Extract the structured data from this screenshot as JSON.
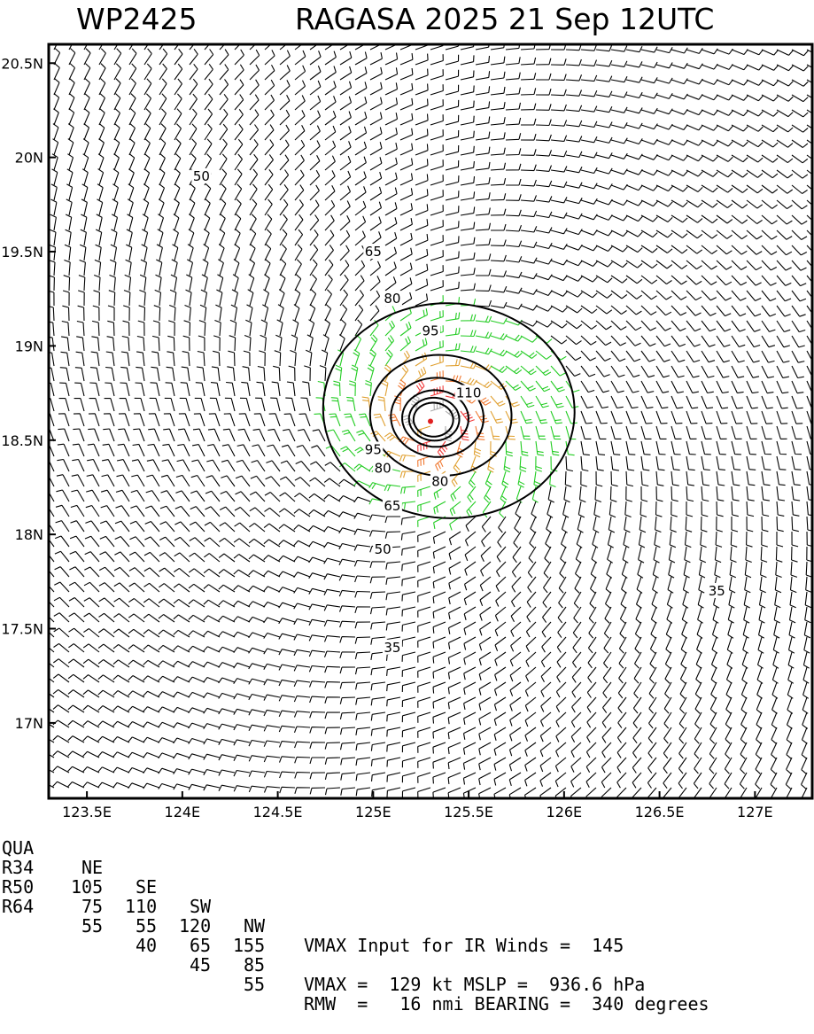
{
  "header": {
    "storm_id": "WP2425",
    "storm_title": "RAGASA 2025 21 Sep 12UTC"
  },
  "chart_data": {
    "type": "contour",
    "xlim": [
      123.3,
      127.3
    ],
    "ylim": [
      16.6,
      20.6
    ],
    "x_ticks": [
      {
        "value": 123.5,
        "label": "123.5E"
      },
      {
        "value": 124.0,
        "label": "124E"
      },
      {
        "value": 124.5,
        "label": "124.5E"
      },
      {
        "value": 125.0,
        "label": "125E"
      },
      {
        "value": 125.5,
        "label": "125.5E"
      },
      {
        "value": 126.0,
        "label": "126E"
      },
      {
        "value": 126.5,
        "label": "126.5E"
      },
      {
        "value": 127.0,
        "label": "127E"
      }
    ],
    "y_ticks": [
      {
        "value": 17.0,
        "label": "17N"
      },
      {
        "value": 17.5,
        "label": "17.5N"
      },
      {
        "value": 18.0,
        "label": "18N"
      },
      {
        "value": 18.5,
        "label": "18.5N"
      },
      {
        "value": 19.0,
        "label": "19N"
      },
      {
        "value": 19.5,
        "label": "19.5N"
      },
      {
        "value": 20.0,
        "label": "20N"
      },
      {
        "value": 20.5,
        "label": "20.5N"
      }
    ],
    "center": {
      "lon": 125.3,
      "lat": 18.6
    },
    "contours": [
      {
        "level": 35,
        "label": "35"
      },
      {
        "level": 50,
        "label": "50"
      },
      {
        "level": 65,
        "label": "65"
      },
      {
        "level": 80,
        "label": "80"
      },
      {
        "level": 95,
        "label": "95"
      },
      {
        "level": 110,
        "label": "110"
      }
    ],
    "contour_labels": [
      {
        "text": "50",
        "lon": 124.1,
        "lat": 19.9
      },
      {
        "text": "65",
        "lon": 125.0,
        "lat": 19.5
      },
      {
        "text": "80",
        "lon": 125.1,
        "lat": 19.25
      },
      {
        "text": "95",
        "lon": 125.3,
        "lat": 19.08
      },
      {
        "text": "110",
        "lon": 125.5,
        "lat": 18.75
      },
      {
        "text": "95",
        "lon": 125.0,
        "lat": 18.45
      },
      {
        "text": "80",
        "lon": 125.05,
        "lat": 18.35
      },
      {
        "text": "80",
        "lon": 125.35,
        "lat": 18.28
      },
      {
        "text": "65",
        "lon": 125.1,
        "lat": 18.15
      },
      {
        "text": "50",
        "lon": 125.05,
        "lat": 17.92
      },
      {
        "text": "35",
        "lon": 125.1,
        "lat": 17.4
      },
      {
        "text": "35",
        "lon": 126.8,
        "lat": 17.7
      }
    ],
    "wind_colors": {
      "lt35": "#000000",
      "35to50": "#22cc22",
      "50to65": "#e0a030",
      "65to80": "#f07830",
      "80to95": "#f03a3a",
      "ge95": "#aaaaaa"
    }
  },
  "footer": {
    "headers": [
      "QUA",
      "NE",
      "SE",
      "SW",
      "NW"
    ],
    "rows": [
      {
        "label": "R34",
        "values": [
          "105",
          "110",
          "120",
          "155"
        ]
      },
      {
        "label": "R50",
        "values": [
          "75",
          "55",
          "65",
          "85"
        ]
      },
      {
        "label": "R64",
        "values": [
          "55",
          "40",
          "45",
          "55"
        ]
      }
    ],
    "vmax_input": "VMAX Input for IR Winds =  145",
    "vmax_mslp": "VMAX =  129 kt MSLP =  936.6 hPa",
    "rmw_bearing": "RMW  =   16 nmi BEARING =  340 degrees"
  }
}
